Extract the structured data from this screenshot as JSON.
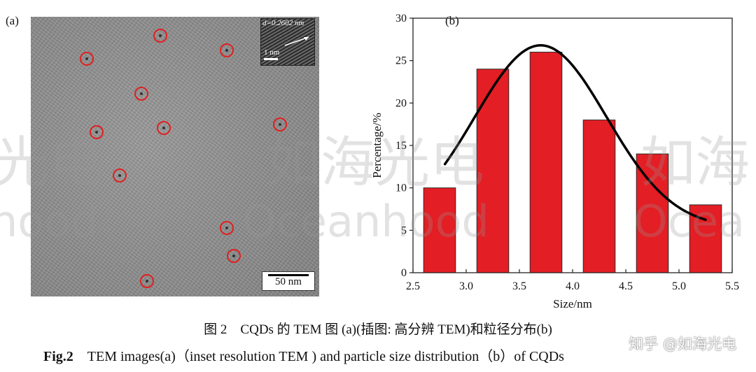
{
  "panel_a": {
    "label": "(a)",
    "inset_spacing_label": "d=0.2602 nm",
    "inset_scale_label": "1 nm",
    "scale_label": "50 nm",
    "marker_count": 12
  },
  "chart_data": {
    "type": "bar",
    "panel_label": "(b)",
    "title": "",
    "xlabel": "Size/nm",
    "ylabel": "Percentage/%",
    "xlim": [
      2.5,
      5.5
    ],
    "ylim": [
      0,
      30
    ],
    "x_ticks": [
      "2.5",
      "3.0",
      "3.5",
      "4.0",
      "4.5",
      "5.0",
      "5.5"
    ],
    "y_ticks": [
      "0",
      "5",
      "10",
      "15",
      "20",
      "25",
      "30"
    ],
    "bin_width": 0.3,
    "bins": [
      {
        "center": 2.75,
        "value": 10
      },
      {
        "center": 3.25,
        "value": 24
      },
      {
        "center": 3.75,
        "value": 26
      },
      {
        "center": 4.25,
        "value": 18
      },
      {
        "center": 4.75,
        "value": 14
      },
      {
        "center": 5.25,
        "value": 8
      }
    ],
    "fit_curve": {
      "type": "gaussian",
      "x_range": [
        2.8,
        5.25
      ],
      "center": 3.7,
      "sigma": 0.62,
      "amplitude": 21.5,
      "baseline": 5.3
    },
    "colors": {
      "bar": "#e31e24",
      "bar_edge": "#2a2a2a",
      "curve": "#000000"
    }
  },
  "captions": {
    "cn": "图 2　CQDs 的 TEM 图 (a)(插图: 高分辨 TEM)和粒径分布(b)",
    "en_label": "Fig.2",
    "en_text": "TEM images(a)（inset  resolution TEM ) and particle size distribution（b）of CQDs"
  },
  "watermarks": {
    "cn_left": "光电",
    "cn_mid": "如海光电",
    "cn_right": "如海",
    "en_left": "hood",
    "en_mid": "Oceanhood",
    "en_right": "Ocea",
    "zhihu": "知乎 @如海光电"
  }
}
